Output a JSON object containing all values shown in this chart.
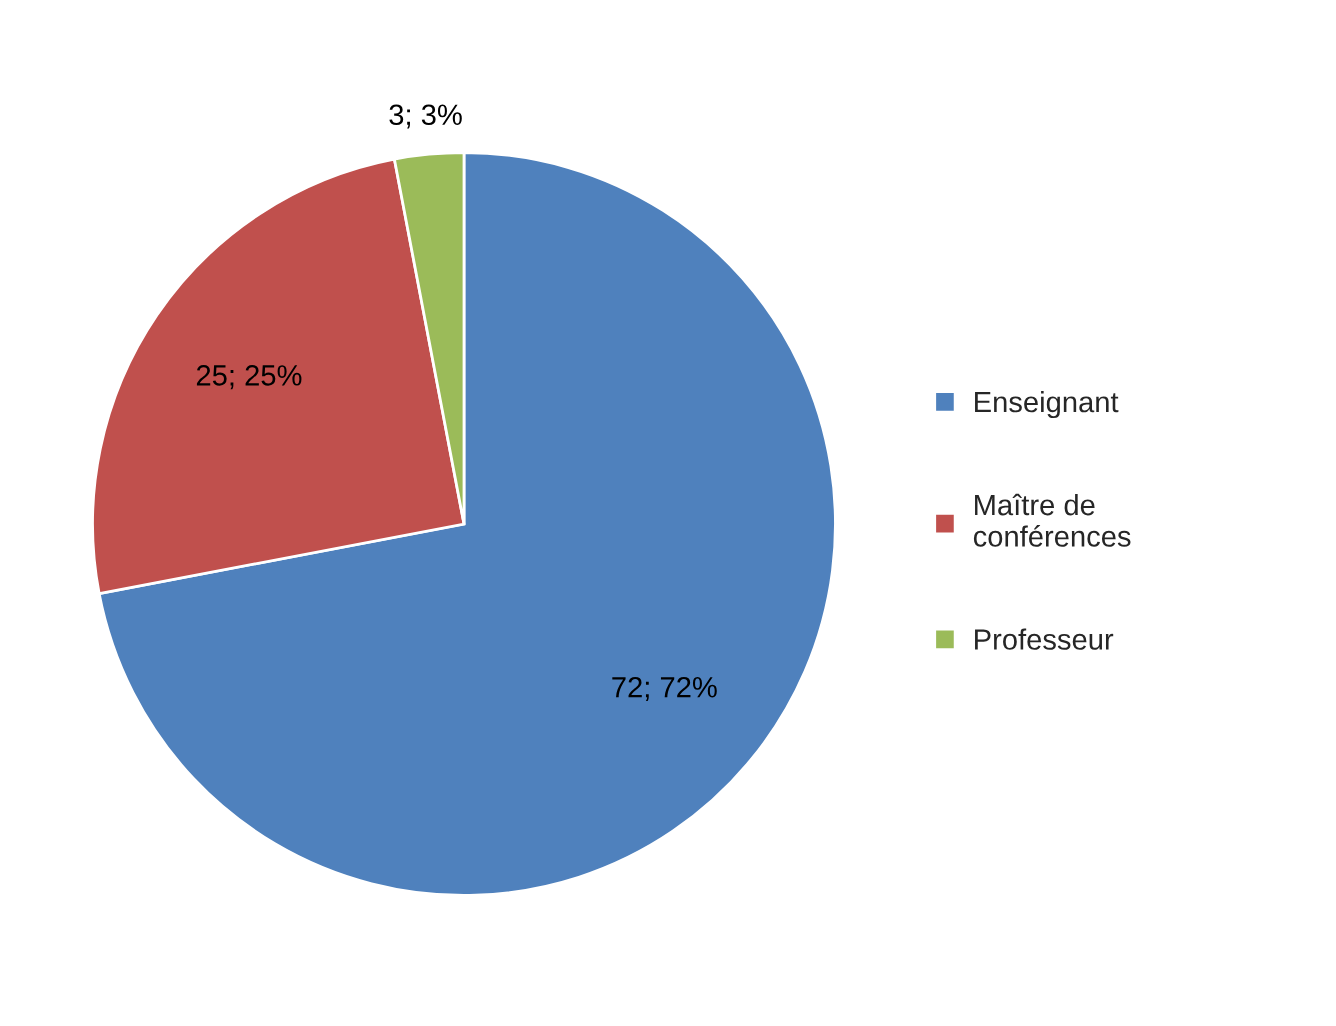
{
  "chart_data": {
    "type": "pie",
    "categories": [
      "Enseignant",
      "Maître de conférences",
      "Professeur"
    ],
    "values": [
      72,
      25,
      3
    ],
    "colors": [
      "#4f81bd",
      "#c0504d",
      "#9bbb59"
    ],
    "value_labels": [
      "72; 72%",
      "25; 25%",
      "3; 3%"
    ],
    "legend": "right"
  }
}
